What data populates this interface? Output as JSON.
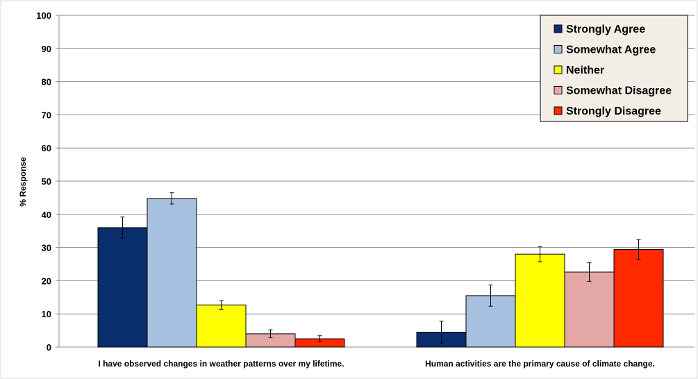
{
  "chart_data": {
    "type": "bar",
    "title": "",
    "xlabel": "",
    "ylabel": "% Response",
    "ylim": [
      0,
      100
    ],
    "yticks": [
      0,
      10,
      20,
      30,
      40,
      50,
      60,
      70,
      80,
      90,
      100
    ],
    "grid": true,
    "legend_position": "top-right",
    "categories": [
      "I have observed changes in weather patterns over my lifetime.",
      "Human activities are the primary cause of climate change."
    ],
    "series": [
      {
        "name": "Strongly Agree",
        "color": "#0b2f6e",
        "values": [
          36.0,
          4.5
        ],
        "errors": [
          3.2,
          3.3
        ]
      },
      {
        "name": "Somewhat Agree",
        "color": "#a7c0df",
        "values": [
          44.8,
          15.5
        ],
        "errors": [
          1.7,
          3.2
        ]
      },
      {
        "name": "Neither",
        "color": "#ffff00",
        "values": [
          12.7,
          28.0
        ],
        "errors": [
          1.3,
          2.3
        ]
      },
      {
        "name": "Somewhat Disagree",
        "color": "#e3a8a6",
        "values": [
          4.0,
          22.6
        ],
        "errors": [
          1.2,
          2.8
        ]
      },
      {
        "name": "Strongly Disagree",
        "color": "#ff2a00",
        "values": [
          2.5,
          29.4
        ],
        "errors": [
          0.9,
          3.0
        ]
      }
    ]
  }
}
